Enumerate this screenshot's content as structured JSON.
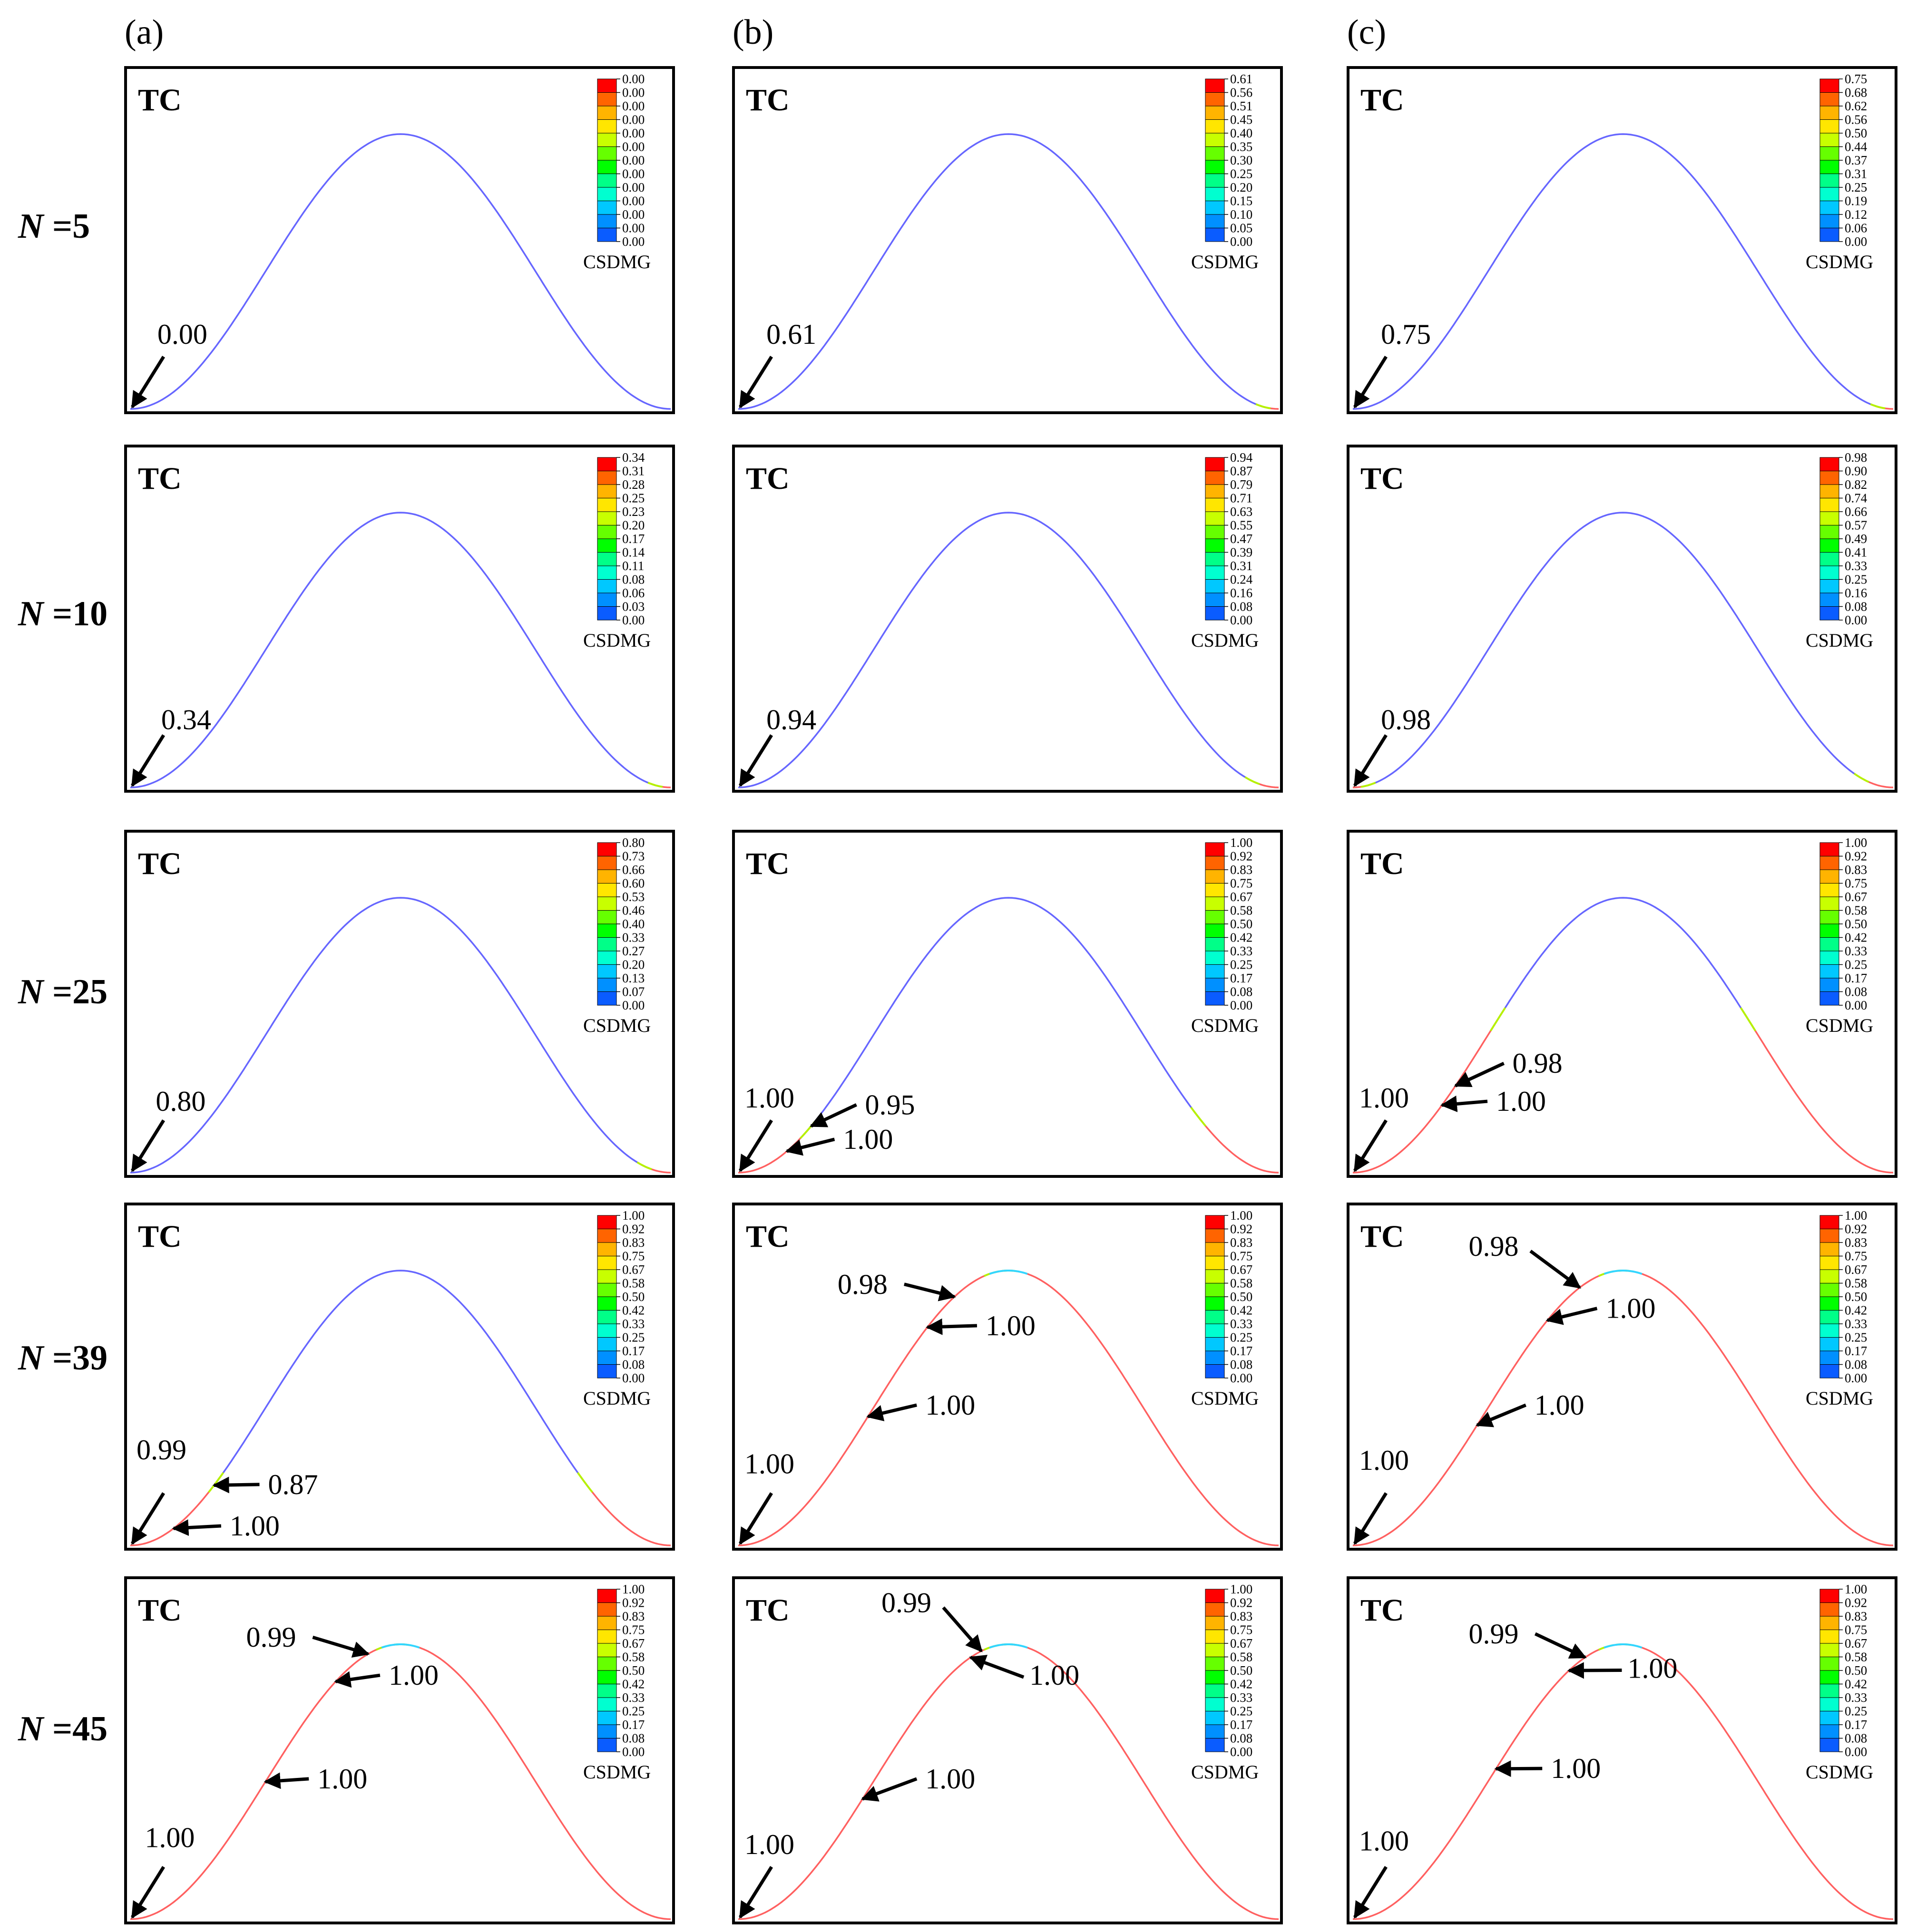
{
  "columns": [
    "(a)",
    "(b)",
    "(c)"
  ],
  "rows": [
    {
      "label_prefix": "N",
      "label_eq": " =5"
    },
    {
      "label_prefix": "N",
      "label_eq": " =10"
    },
    {
      "label_prefix": "N",
      "label_eq": " =25"
    },
    {
      "label_prefix": "N",
      "label_eq": " =39"
    },
    {
      "label_prefix": "N",
      "label_eq": " =45"
    }
  ],
  "panel_label": "TC",
  "legend_label": "CSDMG",
  "colors": {
    "undamaged": "#6666ff",
    "damaged": "#ff6060",
    "legend": [
      "#0000ff",
      "#0a5cff",
      "#0090ff",
      "#00c8ff",
      "#00ffd0",
      "#00ff88",
      "#00ff00",
      "#66ff00",
      "#c8ff00",
      "#ffe600",
      "#ffb400",
      "#ff6400",
      "#ff0000"
    ]
  },
  "panels": [
    [
      {
        "legend": [
          "0.00",
          "0.00",
          "0.00",
          "0.00",
          "0.00",
          "0.00",
          "0.00",
          "0.00",
          "0.00",
          "0.00",
          "0.00",
          "0.00",
          "0.00"
        ],
        "damaged_upto": 0,
        "right_tip": 0,
        "callouts": [
          {
            "text": "0.00",
            "t": 0.0,
            "tx": 0.058,
            "ty": 0.8,
            "dir": "ne"
          }
        ]
      },
      {
        "legend": [
          "0.34",
          "0.31",
          "0.28",
          "0.25",
          "0.23",
          "0.20",
          "0.17",
          "0.14",
          "0.11",
          "0.08",
          "0.06",
          "0.03",
          "0.00"
        ],
        "damaged_upto": 0,
        "right_tip": 0.03,
        "callouts": [
          {
            "text": "0.34",
            "t": 0.0,
            "tx": 0.065,
            "ty": 0.82,
            "dir": "ne"
          }
        ]
      },
      {
        "legend": [
          "0.80",
          "0.73",
          "0.66",
          "0.60",
          "0.53",
          "0.46",
          "0.40",
          "0.33",
          "0.27",
          "0.20",
          "0.13",
          "0.07",
          "0.00"
        ],
        "damaged_upto": 0,
        "right_tip": 0.05,
        "callouts": [
          {
            "text": "0.80",
            "t": 0.0,
            "tx": 0.055,
            "ty": 0.81,
            "dir": "ne"
          }
        ]
      },
      {
        "legend": [
          "1.00",
          "0.92",
          "0.83",
          "0.75",
          "0.67",
          "0.58",
          "0.50",
          "0.42",
          "0.33",
          "0.25",
          "0.17",
          "0.08",
          "0.00"
        ],
        "damaged_upto": 0.16,
        "right_tip": 0.16,
        "callouts": [
          {
            "text": "0.99",
            "t": 0.0,
            "tx": 0.02,
            "ty": 0.74,
            "dir": "ne"
          },
          {
            "text": "0.87",
            "t": 0.155,
            "tx": 0.26,
            "ty": 0.84,
            "dir": "w"
          },
          {
            "text": "1.00",
            "t": 0.08,
            "tx": 0.19,
            "ty": 0.96,
            "dir": "w"
          }
        ]
      },
      {
        "legend": [
          "1.00",
          "0.92",
          "0.83",
          "0.75",
          "0.67",
          "0.58",
          "0.50",
          "0.42",
          "0.33",
          "0.25",
          "0.17",
          "0.08",
          "0.00"
        ],
        "damaged_upto": 0.47,
        "right_tip": 0.5,
        "callouts": [
          {
            "text": "1.00",
            "t": 0.0,
            "tx": 0.035,
            "ty": 0.78,
            "dir": "ne"
          },
          {
            "text": "1.00",
            "t": 0.25,
            "tx": 0.35,
            "ty": 0.61,
            "dir": "w"
          },
          {
            "text": "1.00",
            "t": 0.38,
            "tx": 0.48,
            "ty": 0.31,
            "dir": "w"
          },
          {
            "text": "0.99",
            "t": 0.44,
            "tx": 0.22,
            "ty": 0.2,
            "dir": "e"
          }
        ]
      }
    ],
    [
      {
        "legend": [
          "0.61",
          "0.56",
          "0.51",
          "0.45",
          "0.40",
          "0.35",
          "0.30",
          "0.25",
          "0.20",
          "0.15",
          "0.10",
          "0.05",
          "0.00"
        ],
        "damaged_upto": 0,
        "right_tip": 0.03,
        "callouts": [
          {
            "text": "0.61",
            "t": 0.0,
            "tx": 0.06,
            "ty": 0.8,
            "dir": "ne"
          }
        ]
      },
      {
        "legend": [
          "0.94",
          "0.87",
          "0.79",
          "0.71",
          "0.63",
          "0.55",
          "0.47",
          "0.39",
          "0.31",
          "0.24",
          "0.16",
          "0.08",
          "0.00"
        ],
        "damaged_upto": 0,
        "right_tip": 0.05,
        "callouts": [
          {
            "text": "0.94",
            "t": 0.0,
            "tx": 0.06,
            "ty": 0.82,
            "dir": "ne"
          }
        ]
      },
      {
        "legend": [
          "1.00",
          "0.92",
          "0.83",
          "0.75",
          "0.67",
          "0.58",
          "0.50",
          "0.42",
          "0.33",
          "0.25",
          "0.17",
          "0.08",
          "0.00"
        ],
        "damaged_upto": 0.13,
        "right_tip": 0.15,
        "callouts": [
          {
            "text": "1.00",
            "t": 0.0,
            "tx": 0.02,
            "ty": 0.8,
            "dir": "ne"
          },
          {
            "text": "0.95",
            "t": 0.135,
            "tx": 0.24,
            "ty": 0.82,
            "dir": "w"
          },
          {
            "text": "1.00",
            "t": 0.09,
            "tx": 0.2,
            "ty": 0.92,
            "dir": "w"
          }
        ]
      },
      {
        "legend": [
          "1.00",
          "0.92",
          "0.83",
          "0.75",
          "0.67",
          "0.58",
          "0.50",
          "0.42",
          "0.33",
          "0.25",
          "0.17",
          "0.08",
          "0.00"
        ],
        "damaged_upto": 0.47,
        "right_tip": 0.5,
        "callouts": [
          {
            "text": "1.00",
            "t": 0.0,
            "tx": 0.02,
            "ty": 0.78,
            "dir": "ne"
          },
          {
            "text": "1.00",
            "t": 0.24,
            "tx": 0.35,
            "ty": 0.61,
            "dir": "w"
          },
          {
            "text": "1.00",
            "t": 0.35,
            "tx": 0.46,
            "ty": 0.38,
            "dir": "w"
          },
          {
            "text": "0.98",
            "t": 0.4,
            "tx": 0.19,
            "ty": 0.26,
            "dir": "e"
          }
        ]
      },
      {
        "legend": [
          "1.00",
          "0.92",
          "0.83",
          "0.75",
          "0.67",
          "0.58",
          "0.50",
          "0.42",
          "0.33",
          "0.25",
          "0.17",
          "0.08",
          "0.00"
        ],
        "damaged_upto": 0.47,
        "right_tip": 0.5,
        "callouts": [
          {
            "text": "1.00",
            "t": 0.0,
            "tx": 0.02,
            "ty": 0.8,
            "dir": "ne"
          },
          {
            "text": "1.00",
            "t": 0.23,
            "tx": 0.35,
            "ty": 0.61,
            "dir": "w"
          },
          {
            "text": "1.00",
            "t": 0.43,
            "tx": 0.54,
            "ty": 0.31,
            "dir": "nw"
          },
          {
            "text": "0.99",
            "t": 0.45,
            "tx": 0.27,
            "ty": 0.1,
            "dir": "se"
          }
        ]
      }
    ],
    [
      {
        "legend": [
          "0.75",
          "0.68",
          "0.62",
          "0.56",
          "0.50",
          "0.44",
          "0.37",
          "0.31",
          "0.25",
          "0.19",
          "0.12",
          "0.06",
          "0.00"
        ],
        "damaged_upto": 0,
        "right_tip": 0.03,
        "callouts": [
          {
            "text": "0.75",
            "t": 0.0,
            "tx": 0.06,
            "ty": 0.8,
            "dir": "ne"
          }
        ]
      },
      {
        "legend": [
          "0.98",
          "0.90",
          "0.82",
          "0.74",
          "0.66",
          "0.57",
          "0.49",
          "0.41",
          "0.33",
          "0.25",
          "0.16",
          "0.08",
          "0.00"
        ],
        "damaged_upto": 0.03,
        "right_tip": 0.06,
        "callouts": [
          {
            "text": "0.98",
            "t": 0.0,
            "tx": 0.06,
            "ty": 0.82,
            "dir": "ne"
          }
        ]
      },
      {
        "legend": [
          "1.00",
          "0.92",
          "0.83",
          "0.75",
          "0.67",
          "0.58",
          "0.50",
          "0.42",
          "0.33",
          "0.25",
          "0.17",
          "0.08",
          "0.00"
        ],
        "damaged_upto": 0.27,
        "right_tip": 0.27,
        "callouts": [
          {
            "text": "1.00",
            "t": 0.0,
            "tx": 0.02,
            "ty": 0.8,
            "dir": "ne"
          },
          {
            "text": "0.98",
            "t": 0.19,
            "tx": 0.3,
            "ty": 0.7,
            "dir": "w"
          },
          {
            "text": "1.00",
            "t": 0.165,
            "tx": 0.27,
            "ty": 0.81,
            "dir": "w"
          }
        ]
      },
      {
        "legend": [
          "1.00",
          "0.92",
          "0.83",
          "0.75",
          "0.67",
          "0.58",
          "0.50",
          "0.42",
          "0.33",
          "0.25",
          "0.17",
          "0.08",
          "0.00"
        ],
        "damaged_upto": 0.47,
        "right_tip": 0.5,
        "callouts": [
          {
            "text": "1.00",
            "t": 0.0,
            "tx": 0.02,
            "ty": 0.77,
            "dir": "ne"
          },
          {
            "text": "1.00",
            "t": 0.23,
            "tx": 0.34,
            "ty": 0.61,
            "dir": "w"
          },
          {
            "text": "1.00",
            "t": 0.36,
            "tx": 0.47,
            "ty": 0.33,
            "dir": "w"
          },
          {
            "text": "0.98",
            "t": 0.42,
            "tx": 0.22,
            "ty": 0.15,
            "dir": "se"
          }
        ]
      },
      {
        "legend": [
          "1.00",
          "0.92",
          "0.83",
          "0.75",
          "0.67",
          "0.58",
          "0.50",
          "0.42",
          "0.33",
          "0.25",
          "0.17",
          "0.08",
          "0.00"
        ],
        "damaged_upto": 0.47,
        "right_tip": 0.5,
        "callouts": [
          {
            "text": "1.00",
            "t": 0.0,
            "tx": 0.02,
            "ty": 0.79,
            "dir": "ne"
          },
          {
            "text": "1.00",
            "t": 0.265,
            "tx": 0.37,
            "ty": 0.58,
            "dir": "w"
          },
          {
            "text": "1.00",
            "t": 0.4,
            "tx": 0.51,
            "ty": 0.29,
            "dir": "nw"
          },
          {
            "text": "0.99",
            "t": 0.43,
            "tx": 0.22,
            "ty": 0.19,
            "dir": "e"
          }
        ]
      }
    ]
  ]
}
